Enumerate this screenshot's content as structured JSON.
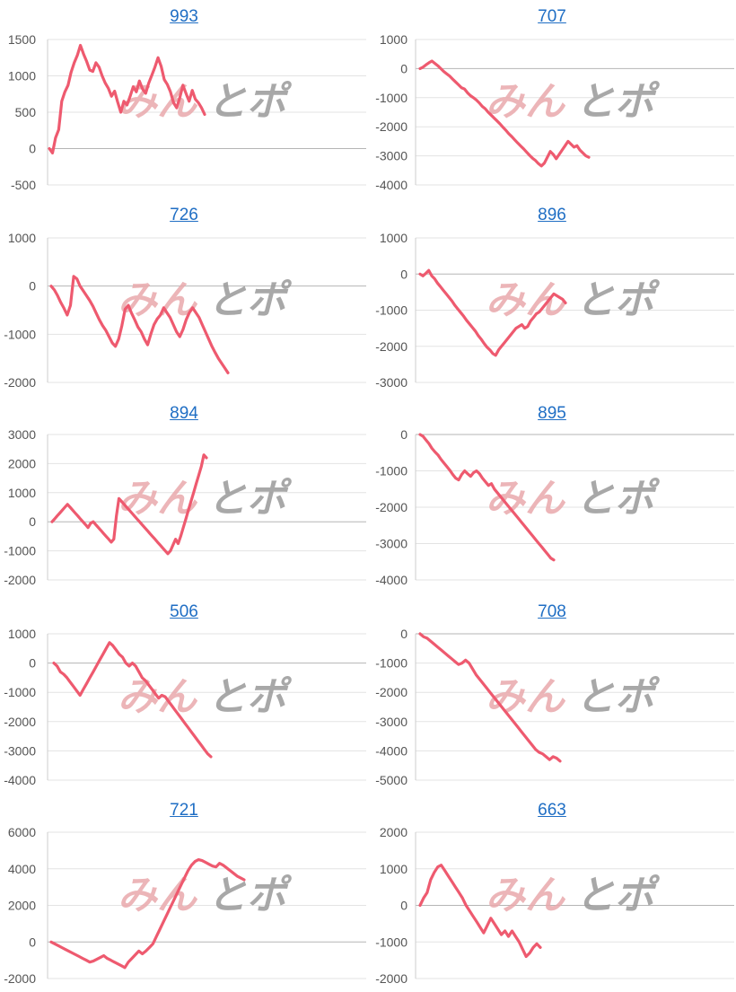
{
  "watermark": {
    "text1": "みん",
    "text2": "とポ",
    "color1": "#e9a9ac",
    "color2": "#9a9a9a"
  },
  "line_color": "#ee5a6f",
  "chart_data": [
    {
      "type": "line",
      "title": "993",
      "yticks": [
        1500,
        1000,
        500,
        0,
        -500
      ],
      "ylim": [
        -500,
        1500
      ],
      "values": [
        0,
        -60,
        150,
        260,
        650,
        780,
        870,
        1050,
        1180,
        1280,
        1420,
        1300,
        1200,
        1080,
        1060,
        1180,
        1120,
        1000,
        900,
        830,
        720,
        790,
        640,
        500,
        650,
        600,
        720,
        850,
        780,
        930,
        820,
        760,
        900,
        1010,
        1120,
        1250,
        1130,
        950,
        880,
        780,
        630,
        560,
        700,
        870,
        760,
        650,
        800,
        680,
        630,
        560,
        470
      ]
    },
    {
      "type": "line",
      "title": "707",
      "yticks": [
        1000,
        0,
        -1000,
        -2000,
        -3000,
        -4000
      ],
      "ylim": [
        -4000,
        1000
      ],
      "values": [
        0,
        50,
        130,
        200,
        260,
        180,
        100,
        0,
        -100,
        -180,
        -260,
        -360,
        -460,
        -560,
        -660,
        -700,
        -830,
        -930,
        -1000,
        -1080,
        -1180,
        -1300,
        -1380,
        -1500,
        -1600,
        -1700,
        -1800,
        -1900,
        -2020,
        -2120,
        -2240,
        -2340,
        -2450,
        -2560,
        -2660,
        -2760,
        -2870,
        -2980,
        -3080,
        -3160,
        -3270,
        -3350,
        -3250,
        -3050,
        -2850,
        -2950,
        -3100,
        -2950,
        -2800,
        -2650,
        -2500,
        -2600,
        -2700,
        -2650,
        -2800,
        -2900,
        -3000,
        -3050
      ]
    },
    {
      "type": "line",
      "title": "726",
      "yticks": [
        1000,
        0,
        -1000,
        -2000
      ],
      "ylim": [
        -2000,
        1000
      ],
      "values": [
        0,
        -80,
        -200,
        -340,
        -460,
        -600,
        -400,
        200,
        150,
        0,
        -100,
        -200,
        -300,
        -420,
        -560,
        -700,
        -820,
        -920,
        -1050,
        -1180,
        -1250,
        -1100,
        -820,
        -480,
        -400,
        -560,
        -700,
        -850,
        -950,
        -1100,
        -1220,
        -1000,
        -800,
        -680,
        -600,
        -450,
        -550,
        -650,
        -800,
        -950,
        -1050,
        -900,
        -700,
        -550,
        -450,
        -550,
        -650,
        -800,
        -950,
        -1100,
        -1250,
        -1380,
        -1500,
        -1600,
        -1700,
        -1800
      ]
    },
    {
      "type": "line",
      "title": "896",
      "yticks": [
        1000,
        0,
        -1000,
        -2000,
        -3000
      ],
      "ylim": [
        -3000,
        1000
      ],
      "values": [
        0,
        -50,
        20,
        100,
        -50,
        -130,
        -250,
        -350,
        -450,
        -550,
        -650,
        -750,
        -870,
        -970,
        -1070,
        -1170,
        -1280,
        -1380,
        -1480,
        -1580,
        -1700,
        -1800,
        -1920,
        -2020,
        -2100,
        -2200,
        -2250,
        -2100,
        -2000,
        -1900,
        -1800,
        -1700,
        -1600,
        -1500,
        -1450,
        -1400,
        -1500,
        -1450,
        -1300,
        -1200,
        -1100,
        -1050,
        -950,
        -850,
        -750,
        -650,
        -550,
        -600,
        -650,
        -700,
        -800
      ]
    },
    {
      "type": "line",
      "title": "894",
      "yticks": [
        3000,
        2000,
        1000,
        0,
        -1000,
        -2000
      ],
      "ylim": [
        -2000,
        3000
      ],
      "values": [
        0,
        100,
        200,
        300,
        400,
        500,
        600,
        500,
        400,
        300,
        200,
        100,
        0,
        -100,
        -200,
        -50,
        0,
        -100,
        -200,
        -300,
        -400,
        -500,
        -600,
        -700,
        -600,
        200,
        800,
        700,
        600,
        500,
        400,
        300,
        200,
        100,
        0,
        -100,
        -200,
        -300,
        -400,
        -500,
        -600,
        -700,
        -800,
        -900,
        -1000,
        -1100,
        -1000,
        -800,
        -600,
        -750,
        -500,
        -200,
        100,
        400,
        700,
        1000,
        1300,
        1600,
        1900,
        2300,
        2200
      ]
    },
    {
      "type": "line",
      "title": "895",
      "yticks": [
        0,
        -1000,
        -2000,
        -3000,
        -4000
      ],
      "ylim": [
        -4000,
        0
      ],
      "values": [
        0,
        -50,
        -150,
        -250,
        -380,
        -480,
        -560,
        -680,
        -780,
        -880,
        -980,
        -1100,
        -1200,
        -1250,
        -1100,
        -1000,
        -1080,
        -1150,
        -1050,
        -1000,
        -1080,
        -1200,
        -1300,
        -1400,
        -1350,
        -1500,
        -1600,
        -1700,
        -1800,
        -1900,
        -2000,
        -2100,
        -2200,
        -2300,
        -2400,
        -2500,
        -2600,
        -2700,
        -2800,
        -2900,
        -3000,
        -3100,
        -3200,
        -3300,
        -3400,
        -3450
      ]
    },
    {
      "type": "line",
      "title": "506",
      "yticks": [
        1000,
        0,
        -1000,
        -2000,
        -3000,
        -4000
      ],
      "ylim": [
        -4000,
        1000
      ],
      "values": [
        0,
        -100,
        -300,
        -380,
        -500,
        -650,
        -800,
        -950,
        -1100,
        -900,
        -700,
        -500,
        -300,
        -100,
        100,
        300,
        500,
        700,
        600,
        450,
        300,
        200,
        0,
        -100,
        0,
        -100,
        -300,
        -500,
        -600,
        -750,
        -900,
        -1050,
        -1200,
        -1100,
        -1150,
        -1300,
        -1450,
        -1600,
        -1750,
        -1900,
        -2050,
        -2200,
        -2350,
        -2500,
        -2650,
        -2800,
        -2950,
        -3100,
        -3200
      ]
    },
    {
      "type": "line",
      "title": "708",
      "yticks": [
        0,
        -1000,
        -2000,
        -3000,
        -4000,
        -5000
      ],
      "ylim": [
        -5000,
        0
      ],
      "values": [
        0,
        -100,
        -150,
        -250,
        -350,
        -450,
        -550,
        -650,
        -750,
        -850,
        -950,
        -1050,
        -1000,
        -900,
        -1000,
        -1200,
        -1400,
        -1550,
        -1700,
        -1850,
        -2000,
        -2150,
        -2300,
        -2450,
        -2600,
        -2750,
        -2900,
        -3050,
        -3200,
        -3350,
        -3500,
        -3650,
        -3800,
        -3950,
        -4050,
        -4100,
        -4200,
        -4300,
        -4200,
        -4250,
        -4350
      ]
    },
    {
      "type": "line",
      "title": "721",
      "yticks": [
        6000,
        4000,
        2000,
        0,
        -2000
      ],
      "ylim": [
        -2000,
        6000
      ],
      "values": [
        0,
        -100,
        -200,
        -300,
        -400,
        -500,
        -600,
        -700,
        -800,
        -900,
        -1000,
        -1100,
        -1050,
        -950,
        -850,
        -750,
        -900,
        -1000,
        -1100,
        -1200,
        -1300,
        -1400,
        -1100,
        -900,
        -700,
        -500,
        -650,
        -500,
        -300,
        -100,
        300,
        700,
        1100,
        1500,
        1900,
        2300,
        2700,
        3100,
        3500,
        3900,
        4200,
        4400,
        4500,
        4450,
        4350,
        4250,
        4150,
        4100,
        4300,
        4200,
        4050,
        3900,
        3750,
        3600,
        3500,
        3400
      ]
    },
    {
      "type": "line",
      "title": "663",
      "yticks": [
        2000,
        1000,
        0,
        -1000,
        -2000
      ],
      "ylim": [
        -2000,
        2000
      ],
      "values": [
        0,
        200,
        350,
        700,
        900,
        1050,
        1100,
        950,
        800,
        650,
        500,
        350,
        200,
        0,
        -150,
        -300,
        -450,
        -600,
        -750,
        -550,
        -350,
        -500,
        -650,
        -800,
        -700,
        -850,
        -700,
        -850,
        -1000,
        -1200,
        -1400,
        -1300,
        -1150,
        -1050,
        -1150
      ]
    }
  ]
}
